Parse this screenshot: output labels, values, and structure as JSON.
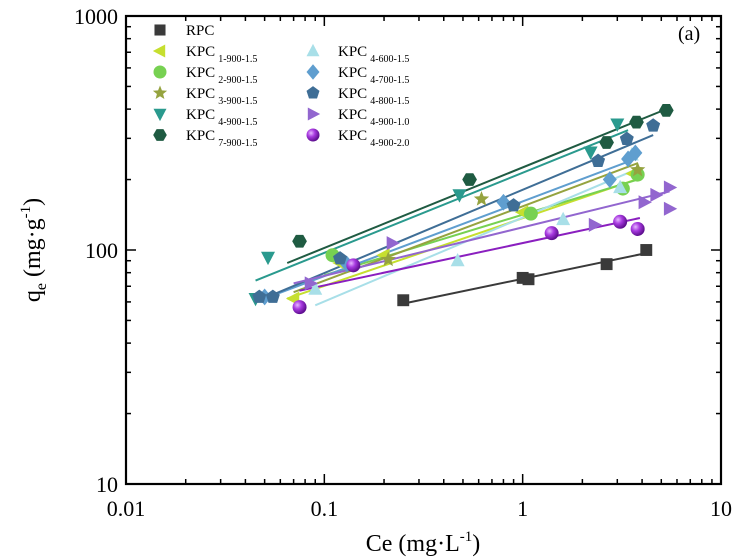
{
  "chart_data": {
    "type": "scatter",
    "scale": {
      "x": "log",
      "y": "log"
    },
    "panel_label": "(a)",
    "xlabel_main": "Ce (mg",
    "xlabel_dot": "·",
    "xlabel_unit": "L",
    "xlabel_exp": "-1",
    "xlabel_close": ")",
    "ylabel_q": "q",
    "ylabel_sub": "e",
    "ylabel_main": " (mg",
    "ylabel_dot": "·",
    "ylabel_unit": "g",
    "ylabel_exp": "-1",
    "ylabel_close": ")",
    "xlim": [
      0.01,
      10
    ],
    "ylim": [
      10,
      1000
    ],
    "x_ticks": [
      {
        "value": 0.01,
        "label": "0.01"
      },
      {
        "value": 0.1,
        "label": "0.1"
      },
      {
        "value": 1,
        "label": "1"
      },
      {
        "value": 10,
        "label": "10"
      }
    ],
    "y_ticks": [
      {
        "value": 10,
        "label": "10"
      },
      {
        "value": 100,
        "label": "100"
      },
      {
        "value": 1000,
        "label": "1000"
      }
    ],
    "series": [
      {
        "name": "RPC",
        "label_main": "RPC",
        "label_sub": "",
        "color": "#3a3a3a",
        "marker": "square",
        "x": [
          0.25,
          1.0,
          1.07,
          2.65,
          4.2
        ],
        "y": [
          61,
          76,
          75,
          87,
          100
        ],
        "fit": {
          "x": [
            0.25,
            4.2
          ],
          "y": [
            59,
            97
          ]
        }
      },
      {
        "name": "KPC 1-900-1.5",
        "label_main": "KPC",
        "label_sub": "1-900-1.5",
        "color": "#c6df2f",
        "marker": "triangle-left",
        "x": [
          0.07,
          0.12,
          0.2,
          1.0,
          3.6
        ],
        "y": [
          62,
          88,
          95,
          145,
          212
        ],
        "fit": {
          "x": [
            0.065,
            3.6
          ],
          "y": [
            62,
            198
          ]
        }
      },
      {
        "name": "KPC 2-900-1.5",
        "label_main": "KPC",
        "label_sub": "2-900-1.5",
        "color": "#77d152",
        "marker": "circle",
        "x": [
          0.11,
          1.1,
          3.2,
          3.8
        ],
        "y": [
          95,
          143,
          183,
          210
        ],
        "fit": {
          "x": [
            0.1,
            3.8
          ],
          "y": [
            78,
            200
          ]
        }
      },
      {
        "name": "KPC 3-900-1.5",
        "label_main": "KPC",
        "label_sub": "3-900-1.5",
        "color": "#95a33f",
        "marker": "star",
        "x": [
          0.21,
          0.62,
          3.8
        ],
        "y": [
          91,
          165,
          220
        ],
        "fit": {
          "x": [
            0.07,
            3.8
          ],
          "y": [
            66,
            235
          ]
        }
      },
      {
        "name": "KPC 4-900-1.5",
        "label_main": "KPC",
        "label_sub": "4-900-1.5",
        "color": "#2a9a8e",
        "marker": "triangle-down",
        "x": [
          0.045,
          0.052,
          0.48,
          2.2,
          3.0
        ],
        "y": [
          62,
          93,
          172,
          262,
          345
        ],
        "fit": {
          "x": [
            0.045,
            3.4
          ],
          "y": [
            74,
            325
          ]
        }
      },
      {
        "name": "KPC 7-900-1.5",
        "label_main": "KPC",
        "label_sub": "7-900-1.5",
        "color": "#1f5b42",
        "marker": "hexagon",
        "x": [
          0.075,
          0.54,
          2.65,
          3.75,
          5.3
        ],
        "y": [
          109,
          200,
          288,
          352,
          395
        ],
        "fit": {
          "x": [
            0.065,
            5.3
          ],
          "y": [
            88,
            400
          ]
        }
      },
      {
        "name": "KPC 4-600-1.5",
        "label_main": "KPC",
        "label_sub": "4-600-1.5",
        "color": "#a8dfe8",
        "marker": "triangle",
        "x": [
          0.09,
          0.47,
          1.6,
          3.1,
          3.55
        ],
        "y": [
          68,
          90,
          135,
          185,
          255
        ],
        "fit": {
          "x": [
            0.09,
            3.6
          ],
          "y": [
            58,
            218
          ]
        }
      },
      {
        "name": "KPC 4-700-1.5",
        "label_main": "KPC",
        "label_sub": "4-700-1.5",
        "color": "#5f9ecf",
        "marker": "diamond",
        "x": [
          0.05,
          0.13,
          0.8,
          2.75,
          3.4,
          3.7
        ],
        "y": [
          63,
          87,
          160,
          200,
          245,
          260
        ],
        "fit": {
          "x": [
            0.05,
            3.7
          ],
          "y": [
            62,
            245
          ]
        }
      },
      {
        "name": "KPC 4-800-1.5",
        "label_main": "KPC",
        "label_sub": "4-800-1.5",
        "color": "#3f6e96",
        "marker": "pentagon",
        "x": [
          0.047,
          0.055,
          0.12,
          0.9,
          2.4,
          3.35,
          4.55
        ],
        "y": [
          63,
          63,
          92,
          155,
          240,
          298,
          340
        ],
        "fit": {
          "x": [
            0.045,
            4.55
          ],
          "y": [
            60,
            310
          ]
        }
      },
      {
        "name": "KPC 4-900-1.0",
        "label_main": "KPC",
        "label_sub": "4-900-1.0",
        "color": "#9266cf",
        "marker": "triangle-right",
        "x": [
          0.085,
          0.22,
          2.3,
          4.1,
          4.7,
          5.5,
          5.5
        ],
        "y": [
          72,
          107,
          128,
          160,
          172,
          185,
          150
        ],
        "fit": {
          "x": [
            0.07,
            5.5
          ],
          "y": [
            72,
            178
          ]
        }
      },
      {
        "name": "KPC 4-900-2.0",
        "label_main": "KPC",
        "label_sub": "4-900-2.0",
        "color": "#8a1fbf",
        "marker": "sphere",
        "x": [
          0.075,
          0.14,
          1.4,
          3.1,
          3.8
        ],
        "y": [
          57,
          86,
          118,
          132,
          123
        ],
        "fit": {
          "x": [
            0.075,
            3.9
          ],
          "y": [
            67,
            137
          ]
        }
      }
    ]
  }
}
